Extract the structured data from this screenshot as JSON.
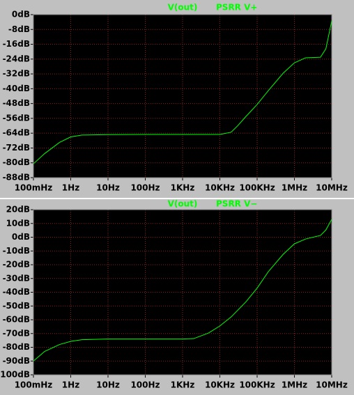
{
  "chart_data": [
    {
      "type": "line",
      "ylabel": "V(out)",
      "log_x": true,
      "grid": true,
      "xlim": [
        0.1,
        10000000
      ],
      "ylim": [
        -88,
        0
      ],
      "xticks": [
        {
          "value": 0.1,
          "label": "100mHz"
        },
        {
          "value": 1,
          "label": "1Hz"
        },
        {
          "value": 10,
          "label": "10Hz"
        },
        {
          "value": 100,
          "label": "100Hz"
        },
        {
          "value": 1000,
          "label": "1KHz"
        },
        {
          "value": 10000,
          "label": "10KHz"
        },
        {
          "value": 100000,
          "label": "100KHz"
        },
        {
          "value": 1000000,
          "label": "1MHz"
        },
        {
          "value": 10000000,
          "label": "10MHz"
        }
      ],
      "yticks": [
        {
          "value": 0,
          "label": "0dB"
        },
        {
          "value": -8,
          "label": "-8dB"
        },
        {
          "value": -16,
          "label": "-16dB"
        },
        {
          "value": -24,
          "label": "-24dB"
        },
        {
          "value": -32,
          "label": "-32dB"
        },
        {
          "value": -40,
          "label": "-40dB"
        },
        {
          "value": -48,
          "label": "-48dB"
        },
        {
          "value": -56,
          "label": "-56dB"
        },
        {
          "value": -64,
          "label": "-64dB"
        },
        {
          "value": -72,
          "label": "-72dB"
        },
        {
          "value": -80,
          "label": "-80dB"
        },
        {
          "value": -88,
          "label": "-88dB"
        }
      ],
      "x": [
        0.1,
        0.2,
        0.5,
        1,
        2,
        10,
        100,
        1000,
        10000,
        20000,
        30000,
        50000,
        100000,
        200000,
        500000,
        1000000,
        2000000,
        5000000,
        7000000,
        10000000
      ],
      "series": [
        {
          "name": "PSRR V+",
          "color": "#00ff00",
          "values": [
            -80.5,
            -75,
            -69,
            -66,
            -65,
            -64.8,
            -64.7,
            -64.7,
            -64.7,
            -63.5,
            -60,
            -55,
            -48.5,
            -41,
            -31.6,
            -26,
            -23.3,
            -23,
            -18.4,
            -3.4
          ]
        }
      ]
    },
    {
      "type": "line",
      "ylabel": "V(out)",
      "log_x": true,
      "grid": true,
      "xlim": [
        0.1,
        10000000
      ],
      "ylim": [
        -100,
        20
      ],
      "xticks": [
        {
          "value": 0.1,
          "label": "100mHz"
        },
        {
          "value": 1,
          "label": "1Hz"
        },
        {
          "value": 10,
          "label": "10Hz"
        },
        {
          "value": 100,
          "label": "100Hz"
        },
        {
          "value": 1000,
          "label": "1KHz"
        },
        {
          "value": 10000,
          "label": "10KHz"
        },
        {
          "value": 100000,
          "label": "100KHz"
        },
        {
          "value": 1000000,
          "label": "1MHz"
        },
        {
          "value": 10000000,
          "label": "10MHz"
        }
      ],
      "yticks": [
        {
          "value": 20,
          "label": "20dB"
        },
        {
          "value": 10,
          "label": "10dB"
        },
        {
          "value": 0,
          "label": "0dB"
        },
        {
          "value": -10,
          "label": "-10dB"
        },
        {
          "value": -20,
          "label": "-20dB"
        },
        {
          "value": -30,
          "label": "-30dB"
        },
        {
          "value": -40,
          "label": "-40dB"
        },
        {
          "value": -50,
          "label": "-50dB"
        },
        {
          "value": -60,
          "label": "-60dB"
        },
        {
          "value": -70,
          "label": "-70dB"
        },
        {
          "value": -80,
          "label": "-80dB"
        },
        {
          "value": -90,
          "label": "-90dB"
        },
        {
          "value": -100,
          "label": "-100dB"
        }
      ],
      "x": [
        0.1,
        0.2,
        0.5,
        1,
        2,
        10,
        1000,
        2000,
        5000,
        10000,
        20000,
        50000,
        100000,
        200000,
        500000,
        1000000,
        2000000,
        5000000,
        7000000,
        10000000
      ],
      "series": [
        {
          "name": "PSRR V−",
          "color": "#00ff00",
          "values": [
            -90,
            -83,
            -78,
            -75.7,
            -74.5,
            -74,
            -74,
            -73.7,
            -69.6,
            -64.5,
            -58,
            -47,
            -37,
            -25,
            -12.4,
            -4.8,
            -1.3,
            1.3,
            5.3,
            13
          ]
        }
      ]
    }
  ]
}
